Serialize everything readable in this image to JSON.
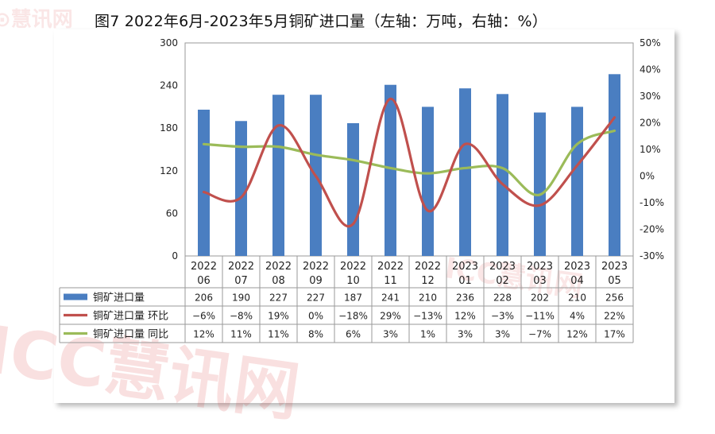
{
  "title": "图7  2022年6月-2023年5月铜矿进口量（左轴：万吨，右轴：%）",
  "watermark": {
    "small": "慧讯网",
    "large": "ICC慧讯网",
    "center": "ICC慧讯网"
  },
  "chart_data": {
    "type": "bar",
    "categories": [
      [
        "2022",
        "06"
      ],
      [
        "2022",
        "07"
      ],
      [
        "2022",
        "08"
      ],
      [
        "2022",
        "09"
      ],
      [
        "2022",
        "10"
      ],
      [
        "2022",
        "11"
      ],
      [
        "2022",
        "12"
      ],
      [
        "2023",
        "01"
      ],
      [
        "2023",
        "02"
      ],
      [
        "2023",
        "03"
      ],
      [
        "2023",
        "04"
      ],
      [
        "2023",
        "05"
      ]
    ],
    "y_left": {
      "min": 0,
      "max": 300,
      "ticks": [
        "0",
        "60",
        "120",
        "180",
        "240",
        "300"
      ]
    },
    "y_right": {
      "min": -30,
      "max": 50,
      "ticks": [
        "-30%",
        "-20%",
        "-10%",
        "0%",
        "10%",
        "20%",
        "30%",
        "40%",
        "50%"
      ]
    },
    "series": [
      {
        "name": "铜矿进口量",
        "type": "bar",
        "axis": "left",
        "color": "#4a7ec1",
        "values": [
          206,
          190,
          227,
          227,
          187,
          241,
          210,
          236,
          228,
          202,
          210,
          256
        ],
        "labels": [
          "206",
          "190",
          "227",
          "227",
          "187",
          "241",
          "210",
          "236",
          "228",
          "202",
          "210",
          "256"
        ]
      },
      {
        "name": "铜矿进口量  环比",
        "type": "line",
        "axis": "right",
        "color": "#c0504d",
        "values": [
          -6,
          -8,
          19,
          0,
          -18,
          29,
          -13,
          12,
          -3,
          -11,
          4,
          22
        ],
        "labels": [
          "−6%",
          "−8%",
          "19%",
          "0%",
          "−18%",
          "29%",
          "−13%",
          "12%",
          "−3%",
          "−11%",
          "4%",
          "22%"
        ]
      },
      {
        "name": "铜矿进口量  同比",
        "type": "line",
        "axis": "right",
        "color": "#9bbb59",
        "values": [
          12,
          11,
          11,
          8,
          6,
          3,
          1,
          3,
          3,
          -7,
          12,
          17
        ],
        "labels": [
          "12%",
          "11%",
          "11%",
          "8%",
          "6%",
          "3%",
          "1%",
          "3%",
          "3%",
          "−7%",
          "12%",
          "17%"
        ]
      }
    ]
  }
}
